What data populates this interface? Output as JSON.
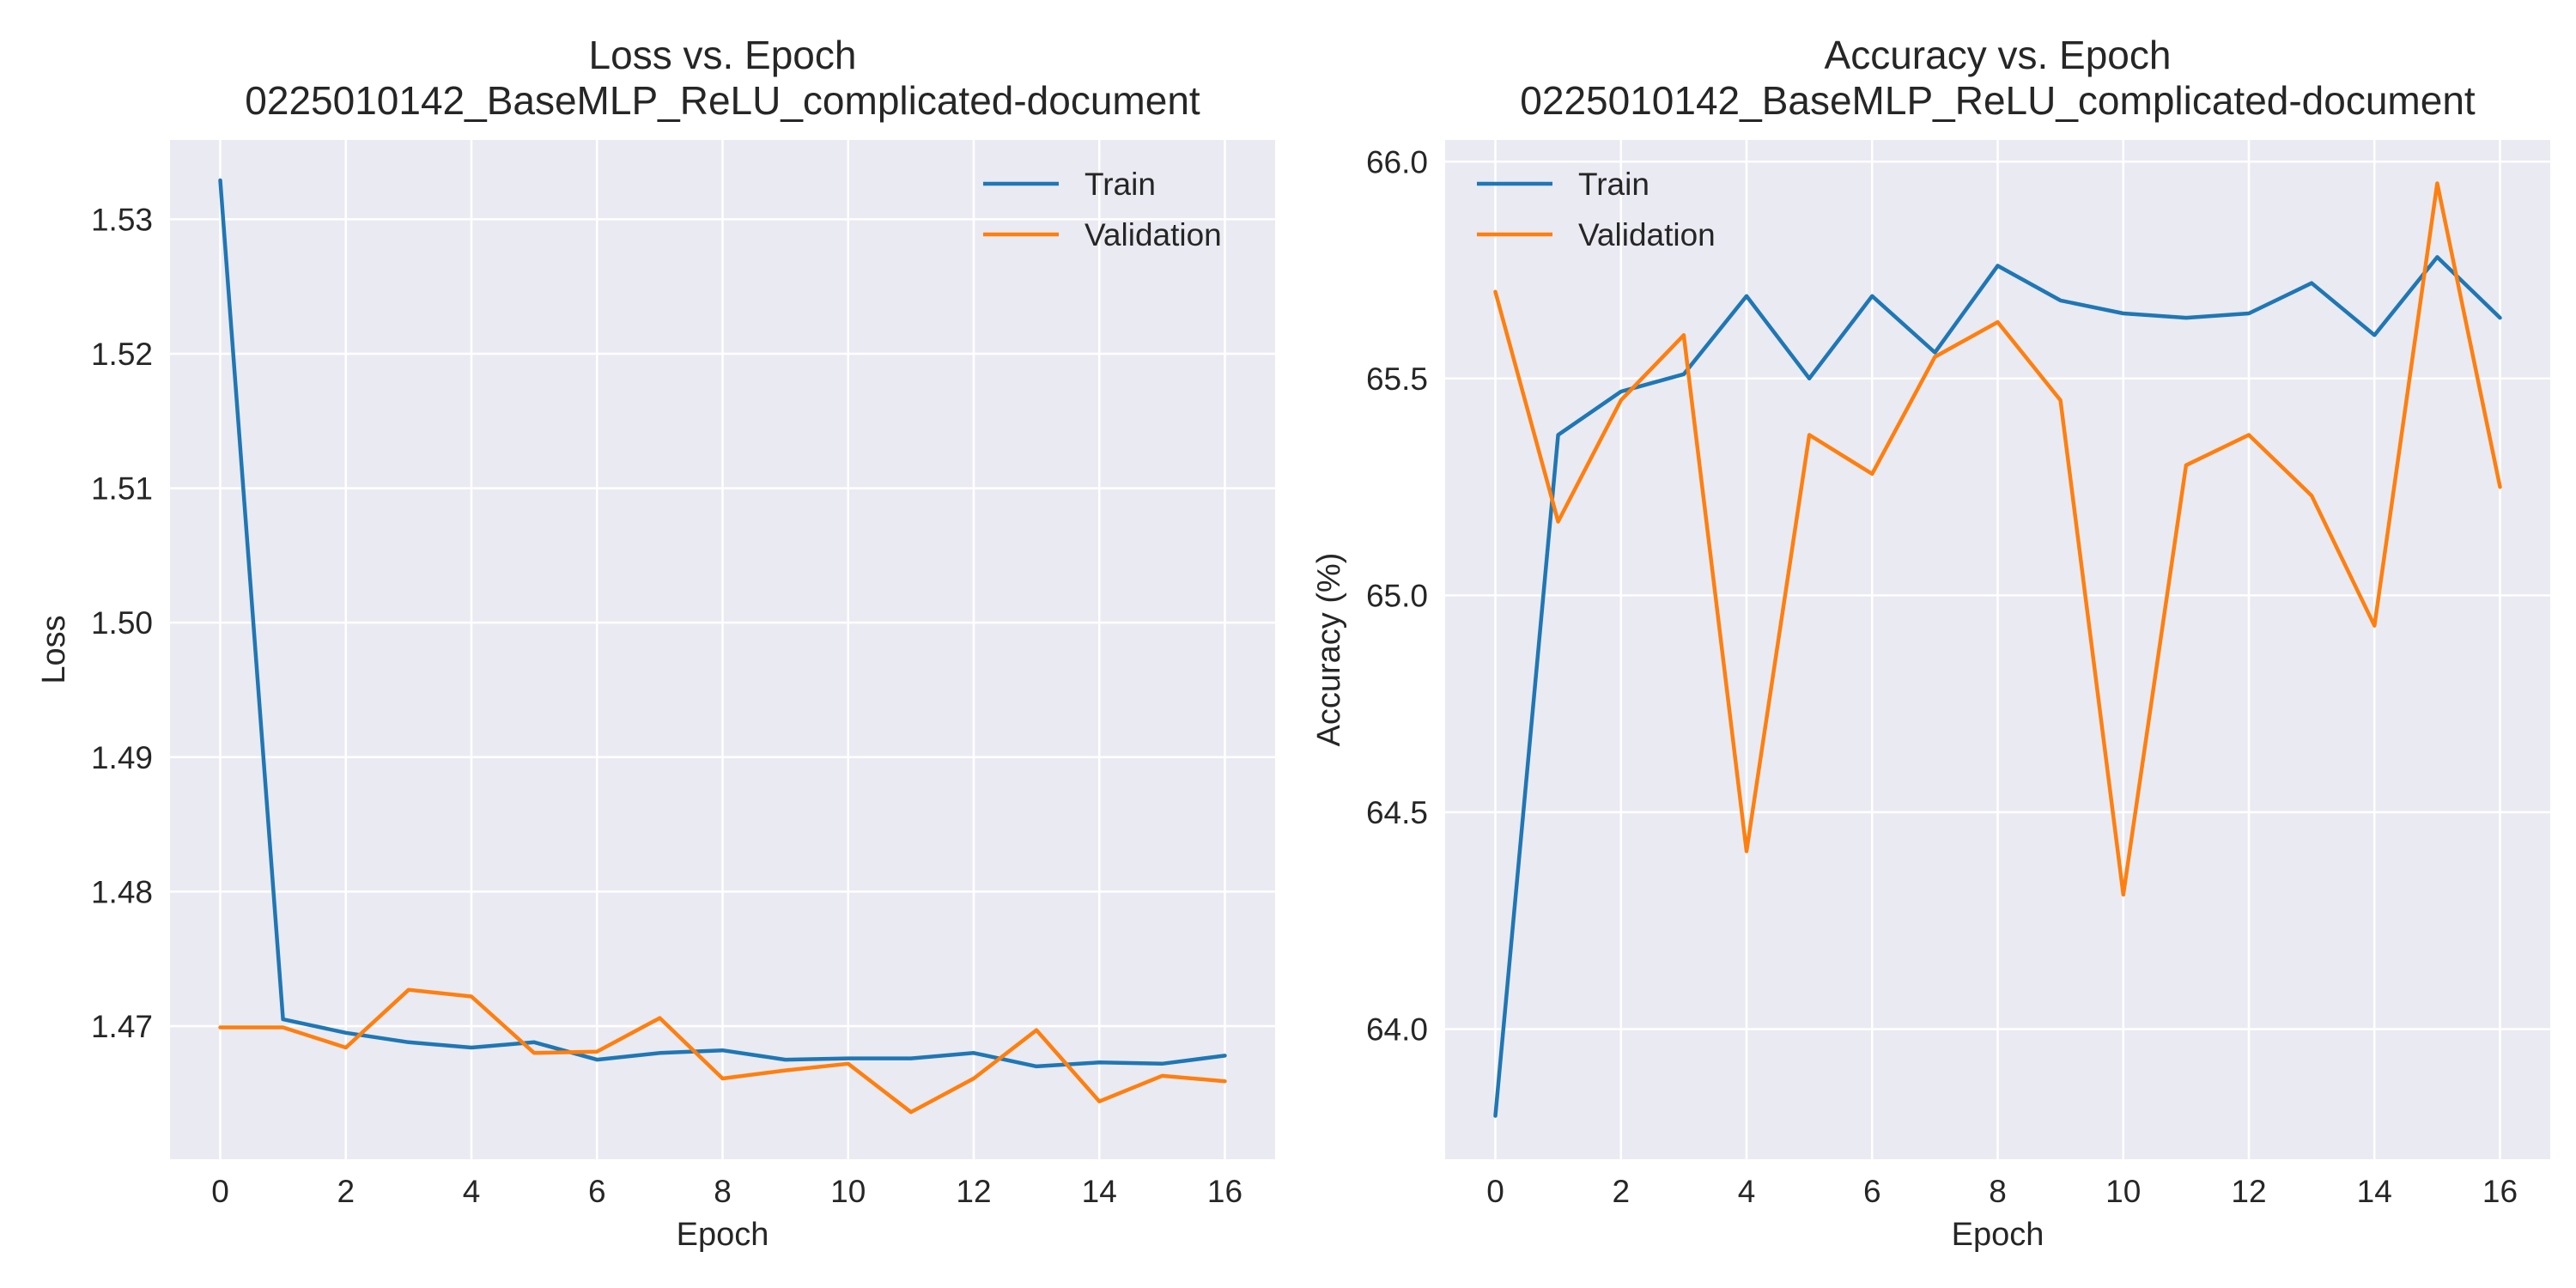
{
  "colors": {
    "figure_background": "#ffffff",
    "plot_background": "#eaeaf2",
    "grid": "#ffffff",
    "text": "#262626",
    "train": "#1f77b4",
    "validation": "#ff7f0e"
  },
  "chart_data": [
    {
      "type": "line",
      "title": "Loss vs. Epoch\n0225010142_BaseMLP_ReLU_complicated-document",
      "title_lines": [
        "Loss vs. Epoch",
        "0225010142_BaseMLP_ReLU_complicated-document"
      ],
      "xlabel": "Epoch",
      "ylabel": "Loss",
      "xlim": [
        -0.8,
        16.8
      ],
      "ylim": [
        1.4601,
        1.5359
      ],
      "xticks": [
        0,
        2,
        4,
        6,
        8,
        10,
        12,
        14,
        16
      ],
      "xtick_labels": [
        "0",
        "2",
        "4",
        "6",
        "8",
        "10",
        "12",
        "14",
        "16"
      ],
      "yticks": [
        1.47,
        1.48,
        1.49,
        1.5,
        1.51,
        1.52,
        1.53
      ],
      "ytick_labels": [
        "1.47",
        "1.48",
        "1.49",
        "1.50",
        "1.51",
        "1.52",
        "1.53"
      ],
      "grid": true,
      "legend": "top-right",
      "x": [
        0,
        1,
        2,
        3,
        4,
        5,
        6,
        7,
        8,
        9,
        10,
        11,
        12,
        13,
        14,
        15,
        16
      ],
      "series": [
        {
          "name": "Train",
          "color": "#1f77b4",
          "values": [
            1.5329,
            1.4705,
            1.4695,
            1.4688,
            1.4684,
            1.4688,
            1.4675,
            1.468,
            1.4682,
            1.4675,
            1.4676,
            1.4676,
            1.468,
            1.467,
            1.4673,
            1.4672,
            1.4678
          ]
        },
        {
          "name": "Validation",
          "color": "#ff7f0e",
          "values": [
            1.4699,
            1.4699,
            1.4684,
            1.4727,
            1.4722,
            1.468,
            1.4681,
            1.4706,
            1.4661,
            1.4667,
            1.4672,
            1.4636,
            1.4661,
            1.4697,
            1.4644,
            1.4663,
            1.4659
          ]
        }
      ]
    },
    {
      "type": "line",
      "title": "Accuracy vs. Epoch\n0225010142_BaseMLP_ReLU_complicated-document",
      "title_lines": [
        "Accuracy vs. Epoch",
        "0225010142_BaseMLP_ReLU_complicated-document"
      ],
      "xlabel": "Epoch",
      "ylabel": "Accuracy (%)",
      "xlim": [
        -0.8,
        16.8
      ],
      "ylim": [
        63.7,
        66.05
      ],
      "xticks": [
        0,
        2,
        4,
        6,
        8,
        10,
        12,
        14,
        16
      ],
      "xtick_labels": [
        "0",
        "2",
        "4",
        "6",
        "8",
        "10",
        "12",
        "14",
        "16"
      ],
      "yticks": [
        64.0,
        64.5,
        65.0,
        65.5,
        66.0
      ],
      "ytick_labels": [
        "64.0",
        "64.5",
        "65.0",
        "65.5",
        "66.0"
      ],
      "grid": true,
      "legend": "top-left",
      "x": [
        0,
        1,
        2,
        3,
        4,
        5,
        6,
        7,
        8,
        9,
        10,
        11,
        12,
        13,
        14,
        15,
        16
      ],
      "series": [
        {
          "name": "Train",
          "color": "#1f77b4",
          "values": [
            63.8,
            65.37,
            65.47,
            65.51,
            65.69,
            65.5,
            65.69,
            65.56,
            65.76,
            65.68,
            65.65,
            65.64,
            65.65,
            65.72,
            65.6,
            65.78,
            65.64
          ]
        },
        {
          "name": "Validation",
          "color": "#ff7f0e",
          "values": [
            65.7,
            65.17,
            65.45,
            65.6,
            64.41,
            65.37,
            65.28,
            65.55,
            65.63,
            65.45,
            64.31,
            65.3,
            65.37,
            65.23,
            64.93,
            65.95,
            65.25
          ]
        }
      ]
    }
  ]
}
